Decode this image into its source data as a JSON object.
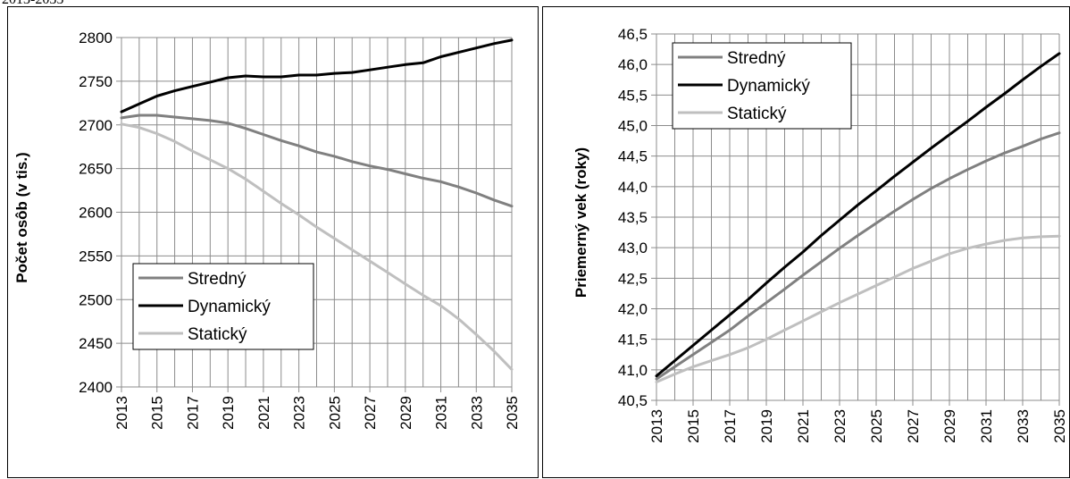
{
  "caption": "2013-2035",
  "chart_data": [
    {
      "type": "line",
      "ylabel": "Počet osôb (v tis.)",
      "ylim": [
        2400,
        2800
      ],
      "ytick_step": 50,
      "ytick_format": "int",
      "x": [
        2013,
        2014,
        2015,
        2016,
        2017,
        2018,
        2019,
        2020,
        2021,
        2022,
        2023,
        2024,
        2025,
        2026,
        2027,
        2028,
        2029,
        2030,
        2031,
        2032,
        2033,
        2034,
        2035
      ],
      "xtick_labels": [
        "2013",
        "2015",
        "2017",
        "2019",
        "2021",
        "2023",
        "2025",
        "2027",
        "2029",
        "2031",
        "2033",
        "2035"
      ],
      "grid": true,
      "legend_position": "bottom-left",
      "series": [
        {
          "name": "Stredný",
          "color": "#808080",
          "values": [
            2708,
            2711,
            2711,
            2709,
            2707,
            2705,
            2702,
            2696,
            2689,
            2682,
            2676,
            2669,
            2664,
            2658,
            2653,
            2649,
            2644,
            2639,
            2635,
            2629,
            2622,
            2614,
            2607
          ]
        },
        {
          "name": "Dynamický",
          "color": "#000000",
          "values": [
            2715,
            2724,
            2733,
            2739,
            2744,
            2749,
            2754,
            2756,
            2755,
            2755,
            2757,
            2757,
            2759,
            2760,
            2763,
            2766,
            2769,
            2771,
            2778,
            2783,
            2788,
            2793,
            2797
          ]
        },
        {
          "name": "Statický",
          "color": "#bfbfbf",
          "values": [
            2701,
            2697,
            2690,
            2681,
            2670,
            2660,
            2650,
            2638,
            2624,
            2610,
            2597,
            2583,
            2570,
            2557,
            2544,
            2531,
            2518,
            2505,
            2493,
            2478,
            2460,
            2441,
            2420
          ]
        }
      ]
    },
    {
      "type": "line",
      "ylabel": "Priemerný vek (roky)",
      "ylim": [
        40.5,
        46.5
      ],
      "ytick_step": 0.5,
      "ytick_format": "comma1",
      "x": [
        2013,
        2014,
        2015,
        2016,
        2017,
        2018,
        2019,
        2020,
        2021,
        2022,
        2023,
        2024,
        2025,
        2026,
        2027,
        2028,
        2029,
        2030,
        2031,
        2032,
        2033,
        2034,
        2035
      ],
      "xtick_labels": [
        "2013",
        "2015",
        "2017",
        "2019",
        "2021",
        "2023",
        "2025",
        "2027",
        "2029",
        "2031",
        "2033",
        "2035"
      ],
      "grid": true,
      "legend_position": "top-left",
      "series": [
        {
          "name": "Stredný",
          "color": "#808080",
          "values": [
            40.85,
            41.05,
            41.25,
            41.45,
            41.65,
            41.88,
            42.1,
            42.32,
            42.55,
            42.77,
            42.99,
            43.2,
            43.4,
            43.6,
            43.79,
            43.97,
            44.13,
            44.28,
            44.42,
            44.55,
            44.66,
            44.78,
            44.88
          ]
        },
        {
          "name": "Dynamický",
          "color": "#000000",
          "values": [
            40.9,
            41.15,
            41.4,
            41.65,
            41.9,
            42.15,
            42.42,
            42.68,
            42.93,
            43.2,
            43.45,
            43.7,
            43.93,
            44.17,
            44.4,
            44.63,
            44.85,
            45.07,
            45.3,
            45.52,
            45.75,
            45.97,
            46.18
          ]
        },
        {
          "name": "Statický",
          "color": "#bfbfbf",
          "values": [
            40.8,
            40.93,
            41.05,
            41.15,
            41.25,
            41.36,
            41.5,
            41.65,
            41.8,
            41.95,
            42.1,
            42.24,
            42.38,
            42.52,
            42.66,
            42.78,
            42.9,
            42.99,
            43.06,
            43.12,
            43.16,
            43.18,
            43.19
          ]
        }
      ]
    }
  ]
}
